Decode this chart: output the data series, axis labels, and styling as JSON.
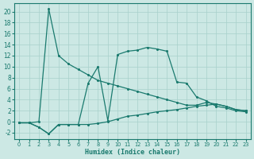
{
  "xlabel": "Humidex (Indice chaleur)",
  "bg_color": "#cce8e4",
  "grid_color": "#a8d0cb",
  "line_color": "#1a7a6e",
  "xlim": [
    -0.5,
    23.5
  ],
  "ylim": [
    -3.2,
    21.5
  ],
  "xticks": [
    0,
    1,
    2,
    3,
    4,
    5,
    6,
    7,
    8,
    9,
    10,
    11,
    12,
    13,
    14,
    15,
    16,
    17,
    18,
    19,
    20,
    21,
    22,
    23
  ],
  "yticks": [
    -2,
    0,
    2,
    4,
    6,
    8,
    10,
    12,
    14,
    16,
    18,
    20
  ],
  "series1_x": [
    0,
    1,
    2,
    3,
    4,
    5,
    6,
    7,
    8,
    9,
    10,
    11,
    12,
    13,
    14,
    15,
    16,
    17,
    18,
    19,
    20,
    21,
    22,
    23
  ],
  "series1_y": [
    -0.2,
    -0.2,
    0.0,
    20.5,
    12.0,
    10.5,
    9.5,
    8.5,
    7.5,
    7.0,
    6.5,
    6.0,
    5.5,
    5.0,
    4.5,
    4.0,
    3.5,
    3.0,
    3.0,
    3.5,
    3.2,
    2.8,
    2.2,
    2.0
  ],
  "series2_x": [
    0,
    1,
    2,
    3,
    4,
    5,
    6,
    7,
    8,
    9,
    10,
    11,
    12,
    13,
    14,
    15,
    16,
    17,
    18,
    19,
    20,
    21,
    22,
    23
  ],
  "series2_y": [
    -0.2,
    -0.2,
    -1.0,
    -2.2,
    -0.5,
    -0.5,
    -0.5,
    7.0,
    10.0,
    0.2,
    12.2,
    12.8,
    13.0,
    13.5,
    13.2,
    12.8,
    7.2,
    7.0,
    4.5,
    3.8,
    2.8,
    2.5,
    2.0,
    1.8
  ],
  "series3_x": [
    0,
    1,
    2,
    3,
    4,
    5,
    6,
    7,
    8,
    9,
    10,
    11,
    12,
    13,
    14,
    15,
    16,
    17,
    18,
    19,
    20,
    21,
    22,
    23
  ],
  "series3_y": [
    -0.2,
    -0.2,
    -1.0,
    -2.2,
    -0.5,
    -0.5,
    -0.5,
    -0.5,
    -0.3,
    0.0,
    0.5,
    1.0,
    1.2,
    1.5,
    1.8,
    2.0,
    2.2,
    2.5,
    2.8,
    3.0,
    3.2,
    2.8,
    2.2,
    2.0
  ]
}
